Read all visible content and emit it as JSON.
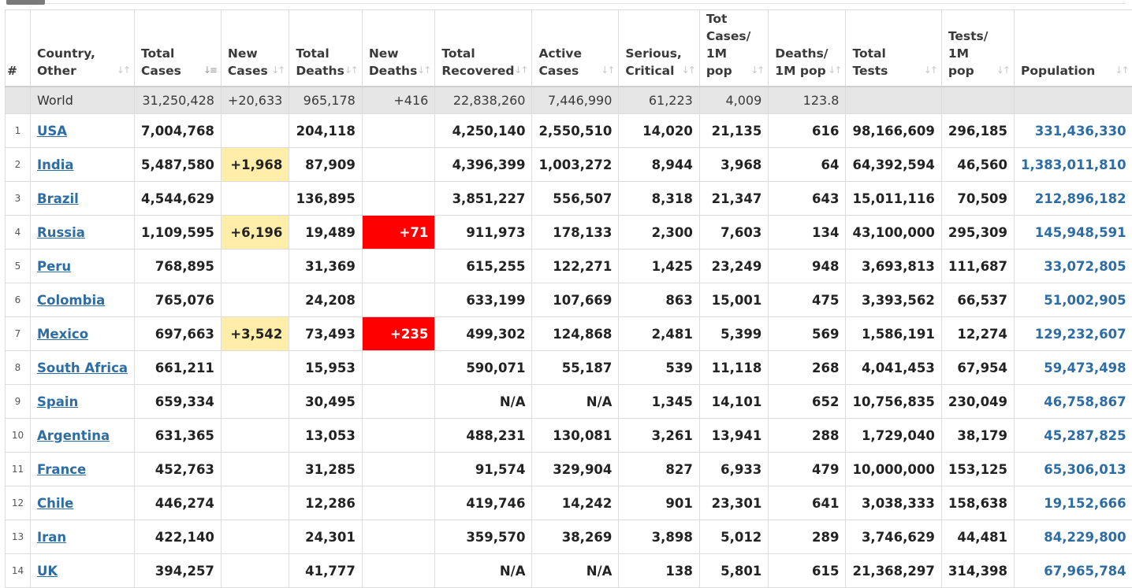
{
  "headers": [
    {
      "label": "#",
      "sort": false
    },
    {
      "label": "Country, Other",
      "sort": true
    },
    {
      "label": "Total Cases",
      "sort": true,
      "active": true
    },
    {
      "label": "New Cases",
      "sort": true
    },
    {
      "label": "Total Deaths",
      "sort": true
    },
    {
      "label": "New Deaths",
      "sort": true
    },
    {
      "label": "Total Recovered",
      "sort": true
    },
    {
      "label": "Active Cases",
      "sort": true
    },
    {
      "label": "Serious, Critical",
      "sort": true
    },
    {
      "label": "Tot Cases/ 1M pop",
      "sort": true
    },
    {
      "label": "Deaths/ 1M pop",
      "sort": true
    },
    {
      "label": "Total Tests",
      "sort": true
    },
    {
      "label": "Tests/ 1M pop",
      "sort": true
    },
    {
      "label": "Population",
      "sort": true
    }
  ],
  "sort_icon": "sort-arrows-icon",
  "world": {
    "country": "World",
    "total_cases": "31,250,428",
    "new_cases": "+20,633",
    "total_deaths": "965,178",
    "new_deaths": "+416",
    "total_recovered": "22,838,260",
    "active_cases": "7,446,990",
    "serious": "61,223",
    "cases_per_1m": "4,009",
    "deaths_per_1m": "123.8",
    "total_tests": "",
    "tests_per_1m": "",
    "population": ""
  },
  "rows": [
    {
      "rank": "1",
      "country": "USA",
      "total_cases": "7,004,768",
      "new_cases": "",
      "total_deaths": "204,118",
      "new_deaths": "",
      "total_recovered": "4,250,140",
      "active_cases": "2,550,510",
      "serious": "14,020",
      "cases_per_1m": "21,135",
      "deaths_per_1m": "616",
      "total_tests": "98,166,609",
      "tests_per_1m": "296,185",
      "population": "331,436,330"
    },
    {
      "rank": "2",
      "country": "India",
      "total_cases": "5,487,580",
      "new_cases": "+1,968",
      "total_deaths": "87,909",
      "new_deaths": "",
      "total_recovered": "4,396,399",
      "active_cases": "1,003,272",
      "serious": "8,944",
      "cases_per_1m": "3,968",
      "deaths_per_1m": "64",
      "total_tests": "64,392,594",
      "tests_per_1m": "46,560",
      "population": "1,383,011,810"
    },
    {
      "rank": "3",
      "country": "Brazil",
      "total_cases": "4,544,629",
      "new_cases": "",
      "total_deaths": "136,895",
      "new_deaths": "",
      "total_recovered": "3,851,227",
      "active_cases": "556,507",
      "serious": "8,318",
      "cases_per_1m": "21,347",
      "deaths_per_1m": "643",
      "total_tests": "15,011,116",
      "tests_per_1m": "70,509",
      "population": "212,896,182"
    },
    {
      "rank": "4",
      "country": "Russia",
      "total_cases": "1,109,595",
      "new_cases": "+6,196",
      "total_deaths": "19,489",
      "new_deaths": "+71",
      "total_recovered": "911,973",
      "active_cases": "178,133",
      "serious": "2,300",
      "cases_per_1m": "7,603",
      "deaths_per_1m": "134",
      "total_tests": "43,100,000",
      "tests_per_1m": "295,309",
      "population": "145,948,591"
    },
    {
      "rank": "5",
      "country": "Peru",
      "total_cases": "768,895",
      "new_cases": "",
      "total_deaths": "31,369",
      "new_deaths": "",
      "total_recovered": "615,255",
      "active_cases": "122,271",
      "serious": "1,425",
      "cases_per_1m": "23,249",
      "deaths_per_1m": "948",
      "total_tests": "3,693,813",
      "tests_per_1m": "111,687",
      "population": "33,072,805"
    },
    {
      "rank": "6",
      "country": "Colombia",
      "total_cases": "765,076",
      "new_cases": "",
      "total_deaths": "24,208",
      "new_deaths": "",
      "total_recovered": "633,199",
      "active_cases": "107,669",
      "serious": "863",
      "cases_per_1m": "15,001",
      "deaths_per_1m": "475",
      "total_tests": "3,393,562",
      "tests_per_1m": "66,537",
      "population": "51,002,905"
    },
    {
      "rank": "7",
      "country": "Mexico",
      "total_cases": "697,663",
      "new_cases": "+3,542",
      "total_deaths": "73,493",
      "new_deaths": "+235",
      "total_recovered": "499,302",
      "active_cases": "124,868",
      "serious": "2,481",
      "cases_per_1m": "5,399",
      "deaths_per_1m": "569",
      "total_tests": "1,586,191",
      "tests_per_1m": "12,274",
      "population": "129,232,607"
    },
    {
      "rank": "8",
      "country": "South Africa",
      "total_cases": "661,211",
      "new_cases": "",
      "total_deaths": "15,953",
      "new_deaths": "",
      "total_recovered": "590,071",
      "active_cases": "55,187",
      "serious": "539",
      "cases_per_1m": "11,118",
      "deaths_per_1m": "268",
      "total_tests": "4,041,453",
      "tests_per_1m": "67,954",
      "population": "59,473,498"
    },
    {
      "rank": "9",
      "country": "Spain",
      "total_cases": "659,334",
      "new_cases": "",
      "total_deaths": "30,495",
      "new_deaths": "",
      "total_recovered": "N/A",
      "active_cases": "N/A",
      "serious": "1,345",
      "cases_per_1m": "14,101",
      "deaths_per_1m": "652",
      "total_tests": "10,756,835",
      "tests_per_1m": "230,049",
      "population": "46,758,867"
    },
    {
      "rank": "10",
      "country": "Argentina",
      "total_cases": "631,365",
      "new_cases": "",
      "total_deaths": "13,053",
      "new_deaths": "",
      "total_recovered": "488,231",
      "active_cases": "130,081",
      "serious": "3,261",
      "cases_per_1m": "13,941",
      "deaths_per_1m": "288",
      "total_tests": "1,729,040",
      "tests_per_1m": "38,179",
      "population": "45,287,825"
    },
    {
      "rank": "11",
      "country": "France",
      "total_cases": "452,763",
      "new_cases": "",
      "total_deaths": "31,285",
      "new_deaths": "",
      "total_recovered": "91,574",
      "active_cases": "329,904",
      "serious": "827",
      "cases_per_1m": "6,933",
      "deaths_per_1m": "479",
      "total_tests": "10,000,000",
      "tests_per_1m": "153,125",
      "population": "65,306,013"
    },
    {
      "rank": "12",
      "country": "Chile",
      "total_cases": "446,274",
      "new_cases": "",
      "total_deaths": "12,286",
      "new_deaths": "",
      "total_recovered": "419,746",
      "active_cases": "14,242",
      "serious": "901",
      "cases_per_1m": "23,301",
      "deaths_per_1m": "641",
      "total_tests": "3,038,333",
      "tests_per_1m": "158,638",
      "population": "19,152,666"
    },
    {
      "rank": "13",
      "country": "Iran",
      "total_cases": "422,140",
      "new_cases": "",
      "total_deaths": "24,301",
      "new_deaths": "",
      "total_recovered": "359,570",
      "active_cases": "38,269",
      "serious": "3,898",
      "cases_per_1m": "5,012",
      "deaths_per_1m": "289",
      "total_tests": "3,746,629",
      "tests_per_1m": "44,481",
      "population": "84,229,800"
    },
    {
      "rank": "14",
      "country": "UK",
      "total_cases": "394,257",
      "new_cases": "",
      "total_deaths": "41,777",
      "new_deaths": "",
      "total_recovered": "N/A",
      "active_cases": "N/A",
      "serious": "138",
      "cases_per_1m": "5,801",
      "deaths_per_1m": "615",
      "total_tests": "21,368,297",
      "tests_per_1m": "314,398",
      "population": "67,965,784"
    }
  ],
  "colors": {
    "link": "#2e6da4",
    "new_cases_bg": "#ffeeaa",
    "new_deaths_bg": "#ff0000",
    "world_bg": "#e6e6e6"
  }
}
